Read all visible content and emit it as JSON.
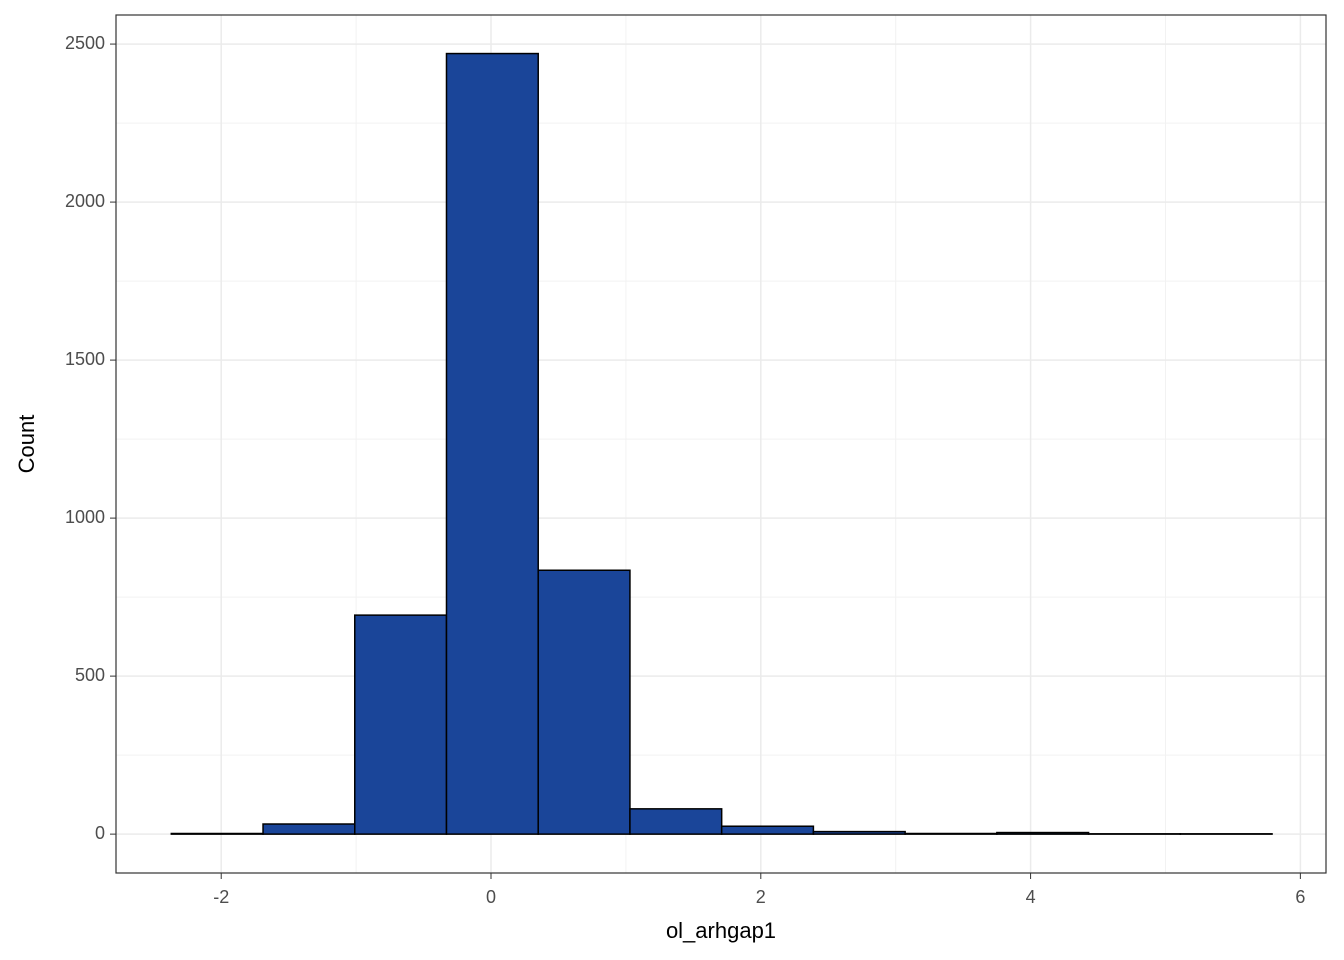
{
  "chart_data": {
    "type": "histogram",
    "x_label": "ol_arhgap1",
    "y_label": "Count",
    "bins": [
      -2.37,
      -1.69,
      -1.01,
      -0.33,
      0.35,
      1.03,
      1.71,
      2.39,
      3.07,
      3.75,
      4.43,
      5.11,
      5.79
    ],
    "counts": [
      2,
      32,
      693,
      2470,
      835,
      80,
      25,
      8,
      2,
      5,
      1,
      1
    ],
    "color": "#1a4599",
    "edge_color": "#000000",
    "xlim": [
      -2.78,
      6.19
    ],
    "ylim": [
      -123,
      2592
    ],
    "xticks": [
      -2,
      0,
      2,
      4,
      6
    ],
    "yticks": [
      0,
      500,
      1000,
      1500,
      2000,
      2500
    ],
    "x_minor_ticks": [
      -1,
      1,
      3,
      5
    ],
    "y_minor_ticks": [
      250,
      750,
      1250,
      1750,
      2250
    ],
    "grid": true
  }
}
